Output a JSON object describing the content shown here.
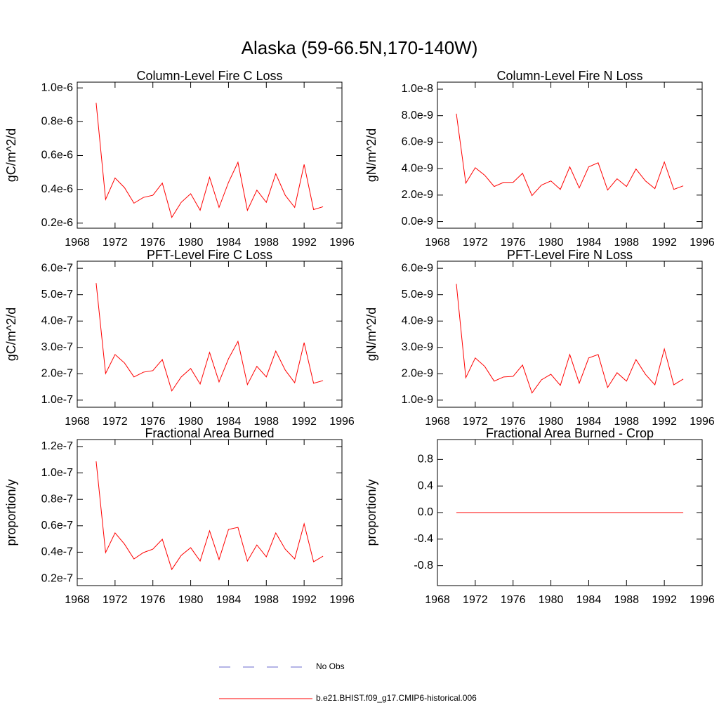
{
  "title": "Alaska (59-66.5N,170-140W)",
  "legend": [
    {
      "name": "No Obs",
      "color": "#6a6acd",
      "dash": true
    }
  ],
  "chart_data": [
    {
      "type": "line",
      "title": "Column-Level Fire C Loss",
      "y_label": "gC/m^2/d",
      "x": [
        1970,
        1971,
        1972,
        1973,
        1974,
        1975,
        1976,
        1977,
        1978,
        1979,
        1980,
        1981,
        1982,
        1983,
        1984,
        1985,
        1986,
        1987,
        1988,
        1989,
        1990,
        1991,
        1992,
        1993,
        1994
      ],
      "series": [
        {
          "name": "b.e21.BHIST.f09_g17.CMIP6-historical.006",
          "color": "#ff0000",
          "values": [
            9.11e-07,
            3.4e-07,
            4.67e-07,
            4.1e-07,
            3.18e-07,
            3.52e-07,
            3.65e-07,
            4.37e-07,
            2.34e-07,
            3.23e-07,
            3.74e-07,
            2.76e-07,
            4.71e-07,
            2.93e-07,
            4.41e-07,
            5.6e-07,
            2.76e-07,
            3.95e-07,
            3.23e-07,
            4.92e-07,
            3.65e-07,
            2.93e-07,
            5.47e-07,
            2.8e-07,
            2.97e-07
          ]
        }
      ],
      "xlim": [
        1968,
        1996
      ],
      "xticks": [
        1968,
        1972,
        1976,
        1980,
        1984,
        1988,
        1992,
        1996
      ],
      "ylim": [
        1.7e-07,
        1.034e-06
      ],
      "yticks": [
        {
          "value": 2e-07,
          "label": "0.2e-6"
        },
        {
          "value": 4e-07,
          "label": "0.4e-6"
        },
        {
          "value": 6e-07,
          "label": "0.6e-6"
        },
        {
          "value": 8e-07,
          "label": "0.8e-6"
        },
        {
          "value": 1e-06,
          "label": "1.0e-6"
        }
      ]
    },
    {
      "type": "line",
      "title": "Column-Level Fire N Loss",
      "y_label": "gN/m^2/d",
      "x": [
        1970,
        1971,
        1972,
        1973,
        1974,
        1975,
        1976,
        1977,
        1978,
        1979,
        1980,
        1981,
        1982,
        1983,
        1984,
        1985,
        1986,
        1987,
        1988,
        1989,
        1990,
        1991,
        1992,
        1993,
        1994
      ],
      "series": [
        {
          "name": "b.e21.BHIST.f09_g17.CMIP6-historical.006",
          "color": "#ff0000",
          "values": [
            8.15e-09,
            2.9e-09,
            4.07e-09,
            3.5e-09,
            2.65e-09,
            2.96e-09,
            2.96e-09,
            3.65e-09,
            1.96e-09,
            2.75e-09,
            3.07e-09,
            2.43e-09,
            4.13e-09,
            2.54e-09,
            4.13e-09,
            4.44e-09,
            2.38e-09,
            3.23e-09,
            2.65e-09,
            3.97e-09,
            3.07e-09,
            2.49e-09,
            4.5e-09,
            2.43e-09,
            2.7e-09
          ]
        }
      ],
      "xlim": [
        1968,
        1996
      ],
      "xticks": [
        1968,
        1972,
        1976,
        1980,
        1984,
        1988,
        1992,
        1996
      ],
      "ylim": [
        -5e-10,
        1.053e-08
      ],
      "yticks": [
        {
          "value": 0,
          "label": "0.0e-9"
        },
        {
          "value": 2e-09,
          "label": "2.0e-9"
        },
        {
          "value": 4e-09,
          "label": "4.0e-9"
        },
        {
          "value": 6e-09,
          "label": "6.0e-9"
        },
        {
          "value": 8e-09,
          "label": "8.0e-9"
        },
        {
          "value": 1e-08,
          "label": "1.0e-8"
        }
      ]
    },
    {
      "type": "line",
      "title": "PFT-Level Fire C Loss",
      "y_label": "gC/m^2/d",
      "x": [
        1970,
        1971,
        1972,
        1973,
        1974,
        1975,
        1976,
        1977,
        1978,
        1979,
        1980,
        1981,
        1982,
        1983,
        1984,
        1985,
        1986,
        1987,
        1988,
        1989,
        1990,
        1991,
        1992,
        1993,
        1994
      ],
      "series": [
        {
          "name": "b.e21.BHIST.f09_g17.CMIP6-historical.006",
          "color": "#ff0000",
          "values": [
            5.44e-07,
            2.01e-07,
            2.73e-07,
            2.41e-07,
            1.88e-07,
            2.06e-07,
            2.12e-07,
            2.54e-07,
            1.35e-07,
            1.88e-07,
            2.2e-07,
            1.61e-07,
            2.81e-07,
            1.69e-07,
            2.57e-07,
            3.23e-07,
            1.59e-07,
            2.28e-07,
            1.88e-07,
            2.86e-07,
            2.14e-07,
            1.66e-07,
            3.18e-07,
            1.64e-07,
            1.74e-07
          ]
        }
      ],
      "xlim": [
        1968,
        1996
      ],
      "xticks": [
        1968,
        1972,
        1976,
        1980,
        1984,
        1988,
        1992,
        1996
      ],
      "ylim": [
        7.3e-08,
        6.27e-07
      ],
      "yticks": [
        {
          "value": 1e-07,
          "label": "1.0e-7"
        },
        {
          "value": 2e-07,
          "label": "2.0e-7"
        },
        {
          "value": 3e-07,
          "label": "3.0e-7"
        },
        {
          "value": 4e-07,
          "label": "4.0e-7"
        },
        {
          "value": 5e-07,
          "label": "5.0e-7"
        },
        {
          "value": 6e-07,
          "label": "6.0e-7"
        }
      ]
    },
    {
      "type": "line",
      "title": "PFT-Level Fire N Loss",
      "y_label": "gN/m^2/d",
      "x": [
        1970,
        1971,
        1972,
        1973,
        1974,
        1975,
        1976,
        1977,
        1978,
        1979,
        1980,
        1981,
        1982,
        1983,
        1984,
        1985,
        1986,
        1987,
        1988,
        1989,
        1990,
        1991,
        1992,
        1993,
        1994
      ],
      "series": [
        {
          "name": "b.e21.BHIST.f09_g17.CMIP6-historical.006",
          "color": "#ff0000",
          "values": [
            5.41e-09,
            1.85e-09,
            2.6e-09,
            2.28e-09,
            1.72e-09,
            1.88e-09,
            1.9e-09,
            2.33e-09,
            1.27e-09,
            1.77e-09,
            1.98e-09,
            1.56e-09,
            2.73e-09,
            1.64e-09,
            2.6e-09,
            2.73e-09,
            1.48e-09,
            2.04e-09,
            1.72e-09,
            2.54e-09,
            1.98e-09,
            1.58e-09,
            2.94e-09,
            1.58e-09,
            1.8e-09
          ]
        }
      ],
      "xlim": [
        1968,
        1996
      ],
      "xticks": [
        1968,
        1972,
        1976,
        1980,
        1984,
        1988,
        1992,
        1996
      ],
      "ylim": [
        7.3e-10,
        6.27e-09
      ],
      "yticks": [
        {
          "value": 1e-09,
          "label": "1.0e-9"
        },
        {
          "value": 2e-09,
          "label": "2.0e-9"
        },
        {
          "value": 3e-09,
          "label": "3.0e-9"
        },
        {
          "value": 4e-09,
          "label": "4.0e-9"
        },
        {
          "value": 5e-09,
          "label": "5.0e-9"
        },
        {
          "value": 6e-09,
          "label": "6.0e-9"
        }
      ]
    },
    {
      "type": "line",
      "title": "Fractional Area Burned",
      "y_label": "proportion/y",
      "x": [
        1970,
        1971,
        1972,
        1973,
        1974,
        1975,
        1976,
        1977,
        1978,
        1979,
        1980,
        1981,
        1982,
        1983,
        1984,
        1985,
        1986,
        1987,
        1988,
        1989,
        1990,
        1991,
        1992,
        1993,
        1994
      ],
      "series": [
        {
          "name": "b.e21.BHIST.f09_g17.CMIP6-historical.006",
          "color": "#ff0000",
          "values": [
            1.088e-07,
            3.97e-08,
            5.46e-08,
            4.61e-08,
            3.49e-08,
            3.97e-08,
            4.23e-08,
            4.98e-08,
            2.69e-08,
            3.76e-08,
            4.34e-08,
            3.33e-08,
            5.62e-08,
            3.44e-08,
            5.72e-08,
            5.88e-08,
            3.33e-08,
            4.55e-08,
            3.65e-08,
            5.46e-08,
            4.23e-08,
            3.49e-08,
            6.15e-08,
            3.27e-08,
            3.7e-08
          ]
        }
      ],
      "xlim": [
        1968,
        1996
      ],
      "xticks": [
        1968,
        1972,
        1976,
        1980,
        1984,
        1988,
        1992,
        1996
      ],
      "ylim": [
        1.47e-08,
        1.253e-07
      ],
      "yticks": [
        {
          "value": 2e-08,
          "label": "0.2e-7"
        },
        {
          "value": 4e-08,
          "label": "0.4e-7"
        },
        {
          "value": 6e-08,
          "label": "0.6e-7"
        },
        {
          "value": 8e-08,
          "label": "0.8e-7"
        },
        {
          "value": 1e-07,
          "label": "1.0e-7"
        },
        {
          "value": 1.2e-07,
          "label": "1.2e-7"
        }
      ]
    },
    {
      "type": "line",
      "title": "Fractional Area Burned - Crop",
      "y_label": "proportion/y",
      "x": [
        1970,
        1971,
        1972,
        1973,
        1974,
        1975,
        1976,
        1977,
        1978,
        1979,
        1980,
        1981,
        1982,
        1983,
        1984,
        1985,
        1986,
        1987,
        1988,
        1989,
        1990,
        1991,
        1992,
        1993,
        1994
      ],
      "series": [
        {
          "name": "b.e21.BHIST.f09_g17.CMIP6-historical.006",
          "color": "#ff0000",
          "values": [
            0,
            0,
            0,
            0,
            0,
            0,
            0,
            0,
            0,
            0,
            0,
            0,
            0,
            0,
            0,
            0,
            0,
            0,
            0,
            0,
            0,
            0,
            0,
            0,
            0
          ]
        }
      ],
      "xlim": [
        1968,
        1996
      ],
      "xticks": [
        1968,
        1972,
        1976,
        1980,
        1984,
        1988,
        1992,
        1996
      ],
      "ylim": [
        -1.1,
        1.1
      ],
      "yticks": [
        {
          "value": -0.8,
          "label": "-0.8"
        },
        {
          "value": -0.4,
          "label": "-0.4"
        },
        {
          "value": 0,
          "label": "0.0"
        },
        {
          "value": 0.4,
          "label": "0.4"
        },
        {
          "value": 0.8,
          "label": "0.8"
        }
      ]
    }
  ]
}
